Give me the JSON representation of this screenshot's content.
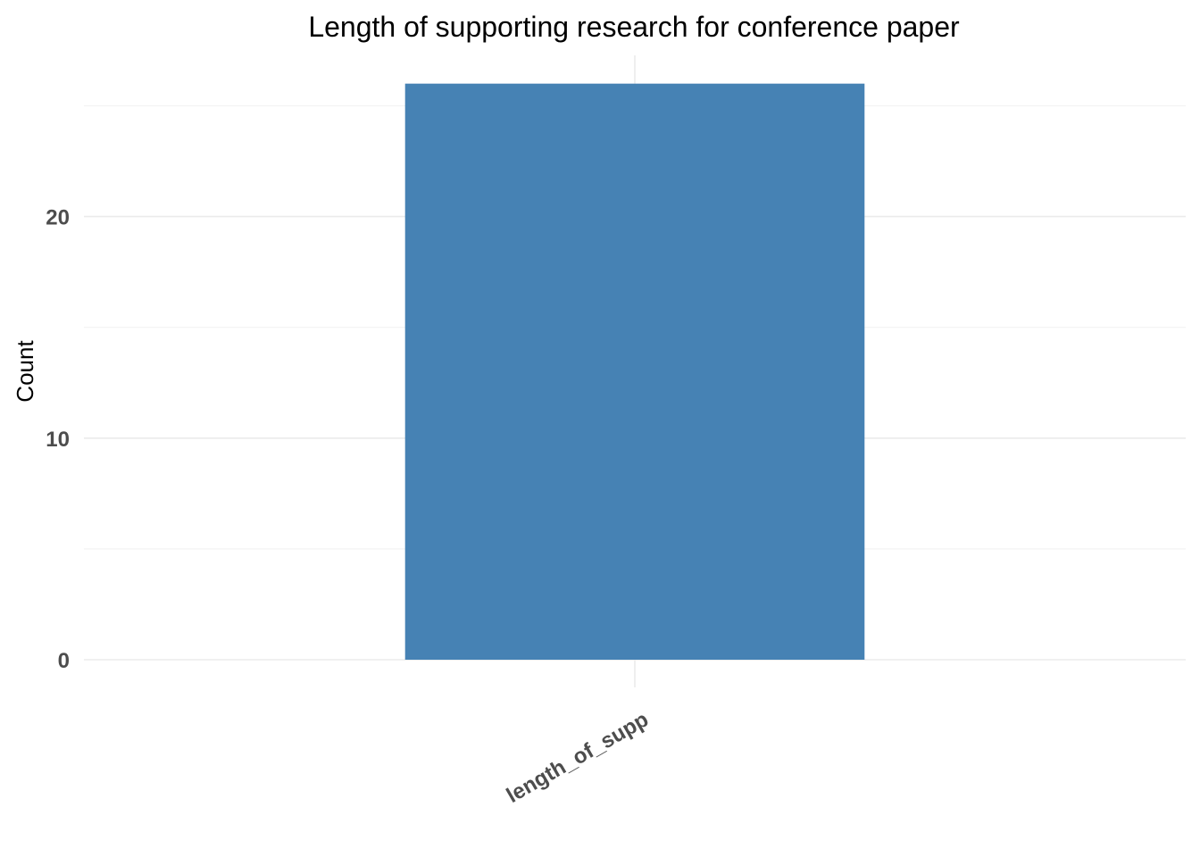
{
  "chart_data": {
    "type": "bar",
    "title": "Length of supporting research for conference paper",
    "xlabel": "",
    "ylabel": "Count",
    "categories": [
      "length_of_supp"
    ],
    "values": [
      26
    ],
    "ylim": [
      0,
      26.5
    ],
    "yticks": [
      0,
      10,
      20
    ],
    "yticks_minor": [
      5,
      15,
      25
    ],
    "grid": true,
    "legend": "none",
    "bar_color": "#4682B4",
    "x_tick_rotation": -30
  }
}
